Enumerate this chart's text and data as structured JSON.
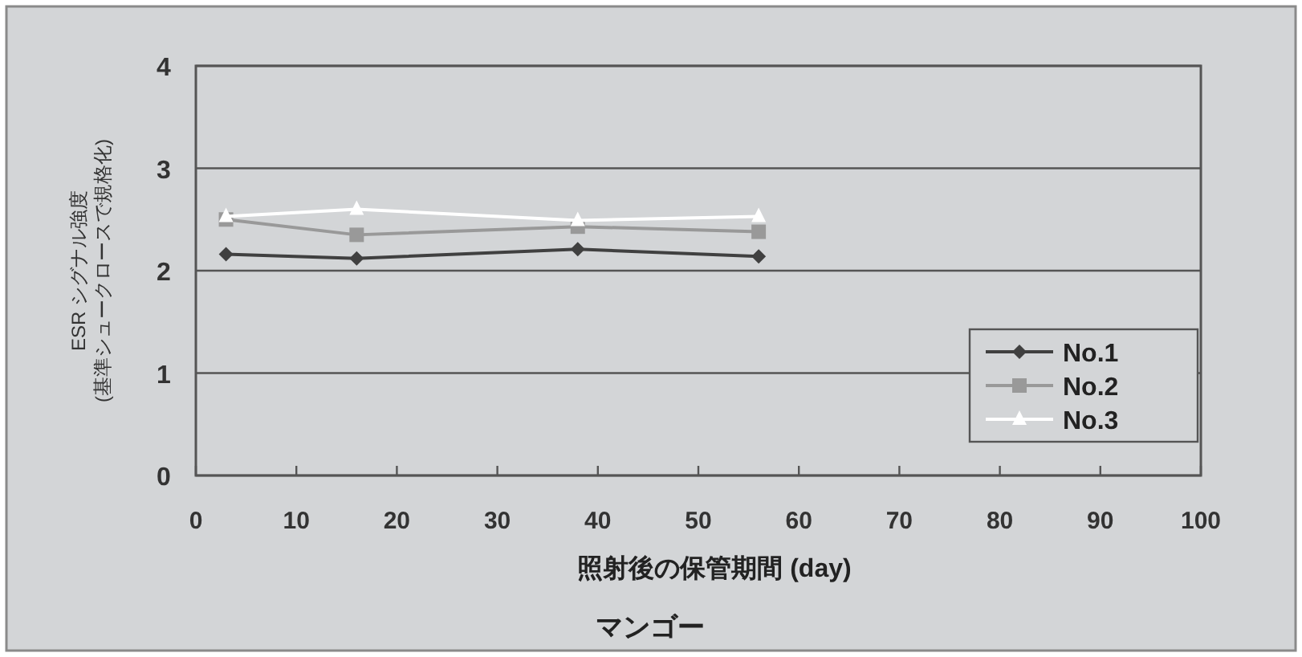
{
  "chart_data": {
    "type": "line",
    "title": "マンゴー",
    "xlabel": "照射後の保管期間 (day)",
    "ylabel": "ESR シグナル強度\n(基準シュークロースで規格化)",
    "xlim": [
      0,
      100
    ],
    "xticks": [
      0,
      10,
      20,
      30,
      40,
      50,
      60,
      70,
      80,
      90,
      100
    ],
    "ylim": [
      0,
      4
    ],
    "yticks": [
      0,
      1,
      2,
      3,
      4
    ],
    "grid": "y",
    "legend": "right",
    "line_style": "solid",
    "series": [
      {
        "name": "No.1",
        "color": "#404040",
        "marker": "diamond",
        "x": [
          3,
          16,
          38,
          56
        ],
        "values": [
          2.16,
          2.12,
          2.21,
          2.14
        ]
      },
      {
        "name": "No.2",
        "color": "#999999",
        "marker": "square",
        "x": [
          3,
          16,
          38,
          56
        ],
        "values": [
          2.5,
          2.35,
          2.43,
          2.38
        ]
      },
      {
        "name": "No.3",
        "color": "#ffffff",
        "marker": "triangle",
        "x": [
          3,
          16,
          38,
          56
        ],
        "values": [
          2.53,
          2.6,
          2.49,
          2.53
        ]
      }
    ]
  }
}
